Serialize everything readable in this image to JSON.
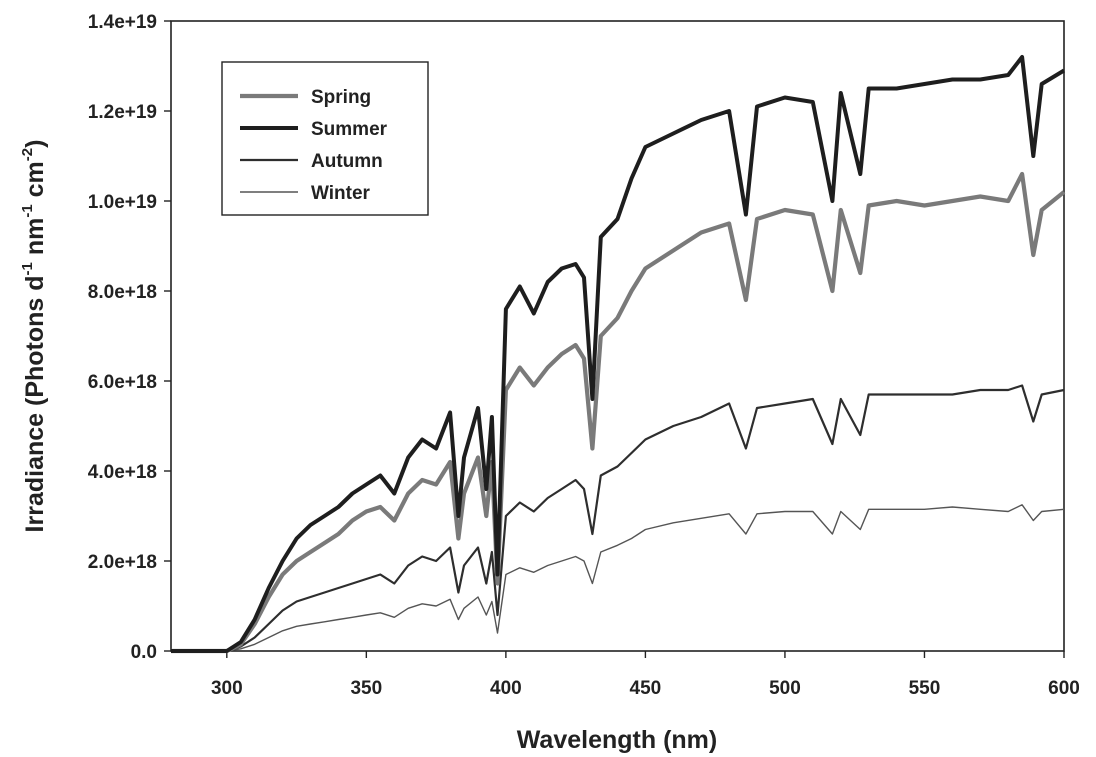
{
  "chart_data": {
    "type": "line",
    "xlabel": "Wavelength (nm)",
    "ylabel": "Irradiance (Photons d",
    "ylabel_parts": [
      "Irradiance (Photons d",
      "-1",
      " nm",
      "-1",
      " cm",
      "-2",
      ")"
    ],
    "xlim": [
      280,
      600
    ],
    "ylim": [
      0,
      1.4e+19
    ],
    "xticks": [
      300,
      350,
      400,
      450,
      500,
      550,
      600
    ],
    "xtick_labels": [
      "300",
      "350",
      "400",
      "450",
      "500",
      "550",
      "600"
    ],
    "yticks": [
      0,
      2e+18,
      4e+18,
      6e+18,
      8e+18,
      1e+19,
      1.2e+19,
      1.4e+19
    ],
    "ytick_labels": [
      "0.0",
      "2.0e+18",
      "4.0e+18",
      "6.0e+18",
      "8.0e+18",
      "1.0e+19",
      "1.2e+19",
      "1.4e+19"
    ],
    "grid": false,
    "legend_position": "top-left",
    "x": [
      280,
      300,
      305,
      310,
      315,
      320,
      325,
      330,
      335,
      340,
      345,
      350,
      355,
      360,
      365,
      370,
      375,
      380,
      383,
      385,
      390,
      393,
      395,
      397,
      400,
      405,
      410,
      415,
      420,
      425,
      428,
      431,
      434,
      440,
      445,
      450,
      460,
      470,
      480,
      486,
      490,
      500,
      510,
      517,
      520,
      527,
      530,
      540,
      550,
      560,
      570,
      580,
      585,
      589,
      592,
      600
    ],
    "series": [
      {
        "name": "Spring",
        "color": "#7a7a7a",
        "values": [
          0,
          0,
          1.5e+17,
          6e+17,
          1.2e+18,
          1.7e+18,
          2e+18,
          2.2e+18,
          2.4e+18,
          2.6e+18,
          2.9e+18,
          3.1e+18,
          3.2e+18,
          2.9e+18,
          3.5e+18,
          3.8e+18,
          3.7e+18,
          4.2e+18,
          2.5e+18,
          3.5e+18,
          4.3e+18,
          3e+18,
          4.2e+18,
          1.5e+18,
          5.8e+18,
          6.3e+18,
          5.9e+18,
          6.3e+18,
          6.6e+18,
          6.8e+18,
          6.5e+18,
          4.5e+18,
          7e+18,
          7.4e+18,
          8e+18,
          8.5e+18,
          8.9e+18,
          9.3e+18,
          9.5e+18,
          7.8e+18,
          9.6e+18,
          9.8e+18,
          9.7e+18,
          8e+18,
          9.8e+18,
          8.4e+18,
          9.9e+18,
          1e+19,
          9.9e+18,
          1e+19,
          1.01e+19,
          1e+19,
          1.06e+19,
          8.8e+18,
          9.8e+18,
          1.02e+19
        ]
      },
      {
        "name": "Summer",
        "color": "#1e1e1e",
        "values": [
          0,
          0,
          2e+17,
          7e+17,
          1.4e+18,
          2e+18,
          2.5e+18,
          2.8e+18,
          3e+18,
          3.2e+18,
          3.5e+18,
          3.7e+18,
          3.9e+18,
          3.5e+18,
          4.3e+18,
          4.7e+18,
          4.5e+18,
          5.3e+18,
          3e+18,
          4.3e+18,
          5.4e+18,
          3.6e+18,
          5.2e+18,
          1.7e+18,
          7.6e+18,
          8.1e+18,
          7.5e+18,
          8.2e+18,
          8.5e+18,
          8.6e+18,
          8.3e+18,
          5.6e+18,
          9.2e+18,
          9.6e+18,
          1.05e+19,
          1.12e+19,
          1.15e+19,
          1.18e+19,
          1.2e+19,
          9.7e+18,
          1.21e+19,
          1.23e+19,
          1.22e+19,
          1e+19,
          1.24e+19,
          1.06e+19,
          1.25e+19,
          1.25e+19,
          1.26e+19,
          1.27e+19,
          1.27e+19,
          1.28e+19,
          1.32e+19,
          1.1e+19,
          1.26e+19,
          1.29e+19
        ]
      },
      {
        "name": "Autumn",
        "color": "#2e2e2e",
        "values": [
          0,
          0,
          1e+17,
          3e+17,
          6e+17,
          9e+17,
          1.1e+18,
          1.2e+18,
          1.3e+18,
          1.4e+18,
          1.5e+18,
          1.6e+18,
          1.7e+18,
          1.5e+18,
          1.9e+18,
          2.1e+18,
          2e+18,
          2.3e+18,
          1.3e+18,
          1.9e+18,
          2.3e+18,
          1.5e+18,
          2.2e+18,
          8e+17,
          3e+18,
          3.3e+18,
          3.1e+18,
          3.4e+18,
          3.6e+18,
          3.8e+18,
          3.6e+18,
          2.6e+18,
          3.9e+18,
          4.1e+18,
          4.4e+18,
          4.7e+18,
          5e+18,
          5.2e+18,
          5.5e+18,
          4.5e+18,
          5.4e+18,
          5.5e+18,
          5.6e+18,
          4.6e+18,
          5.6e+18,
          4.8e+18,
          5.7e+18,
          5.7e+18,
          5.7e+18,
          5.7e+18,
          5.8e+18,
          5.8e+18,
          5.9e+18,
          5.1e+18,
          5.7e+18,
          5.8e+18
        ]
      },
      {
        "name": "Winter",
        "color": "#555555",
        "values": [
          0,
          0,
          5e+16,
          1.5e+17,
          3e+17,
          4.5e+17,
          5.5e+17,
          6e+17,
          6.5e+17,
          7e+17,
          7.5e+17,
          8e+17,
          8.5e+17,
          7.5e+17,
          9.5e+17,
          1.05e+18,
          1e+18,
          1.15e+18,
          7e+17,
          9.5e+17,
          1.2e+18,
          8e+17,
          1.1e+18,
          4e+17,
          1.7e+18,
          1.85e+18,
          1.75e+18,
          1.9e+18,
          2e+18,
          2.1e+18,
          2e+18,
          1.5e+18,
          2.2e+18,
          2.35e+18,
          2.5e+18,
          2.7e+18,
          2.85e+18,
          2.95e+18,
          3.05e+18,
          2.6e+18,
          3.05e+18,
          3.1e+18,
          3.1e+18,
          2.6e+18,
          3.1e+18,
          2.7e+18,
          3.15e+18,
          3.15e+18,
          3.15e+18,
          3.2e+18,
          3.15e+18,
          3.1e+18,
          3.25e+18,
          2.9e+18,
          3.1e+18,
          3.15e+18
        ]
      }
    ]
  }
}
